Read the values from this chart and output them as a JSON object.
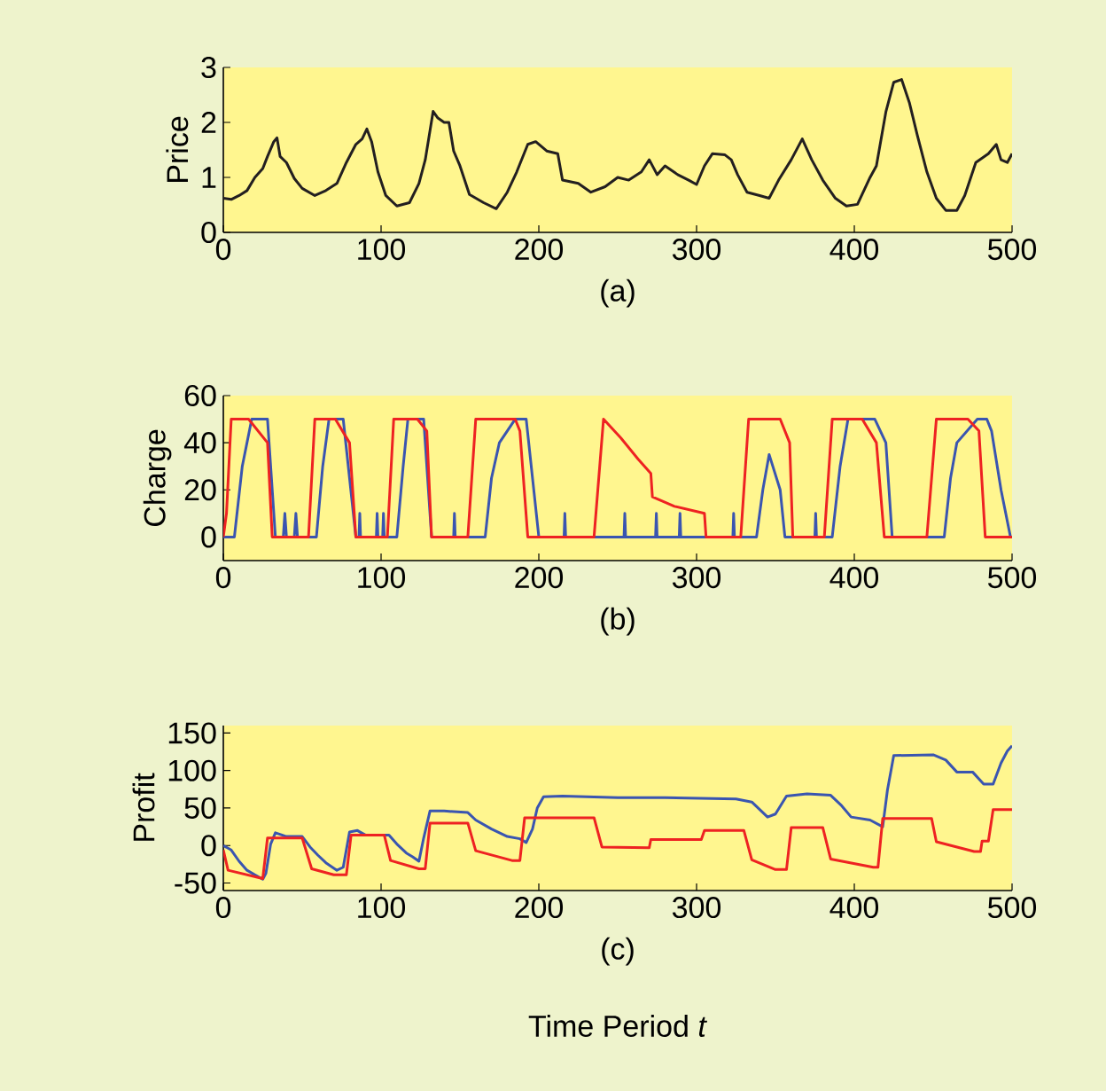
{
  "chart_data": [
    {
      "type": "line",
      "xlabel": "(a)",
      "ylabel": "Price",
      "xlim": [
        0,
        500
      ],
      "ylim": [
        0,
        3
      ],
      "xticks": [
        0,
        100,
        200,
        300,
        400,
        500
      ],
      "yticks": [
        0,
        1,
        2,
        3
      ],
      "series": [
        {
          "color": "#231f20",
          "x": [
            0,
            5,
            10,
            15,
            20,
            25,
            28,
            32,
            34,
            36,
            40,
            45,
            50,
            58,
            65,
            72,
            78,
            84,
            88,
            91,
            94,
            98,
            103,
            110,
            118,
            124,
            128,
            133,
            136,
            140,
            143,
            146,
            150,
            156,
            165,
            173,
            180,
            186,
            193,
            198,
            205,
            212,
            215,
            225,
            233,
            242,
            250,
            257,
            265,
            270,
            275,
            280,
            288,
            295,
            300,
            305,
            310,
            318,
            322,
            326,
            332,
            340,
            346,
            352,
            360,
            367,
            373,
            380,
            388,
            395,
            402,
            410,
            414,
            420,
            425,
            430,
            435,
            440,
            446,
            452,
            458,
            465,
            470,
            477,
            485,
            490,
            493,
            497,
            500
          ],
          "values": [
            0.62,
            0.6,
            0.67,
            0.76,
            1.0,
            1.16,
            1.38,
            1.65,
            1.72,
            1.38,
            1.27,
            0.98,
            0.8,
            0.67,
            0.76,
            0.89,
            1.27,
            1.6,
            1.7,
            1.88,
            1.65,
            1.1,
            0.67,
            0.48,
            0.54,
            0.89,
            1.32,
            2.2,
            2.08,
            2.0,
            2.0,
            1.48,
            1.21,
            0.69,
            0.54,
            0.43,
            0.73,
            1.1,
            1.6,
            1.65,
            1.48,
            1.43,
            0.95,
            0.89,
            0.73,
            0.83,
            1.0,
            0.95,
            1.1,
            1.32,
            1.05,
            1.21,
            1.05,
            0.95,
            0.87,
            1.21,
            1.43,
            1.41,
            1.32,
            1.05,
            0.73,
            0.67,
            0.62,
            0.95,
            1.32,
            1.7,
            1.32,
            0.95,
            0.62,
            0.48,
            0.51,
            1.0,
            1.21,
            2.19,
            2.73,
            2.78,
            2.35,
            1.76,
            1.1,
            0.62,
            0.4,
            0.4,
            0.67,
            1.27,
            1.43,
            1.6,
            1.32,
            1.27,
            1.43
          ]
        }
      ]
    },
    {
      "type": "line",
      "xlabel": "(b)",
      "ylabel": "Charge",
      "xlim": [
        0,
        500
      ],
      "ylim": [
        -10,
        60
      ],
      "xticks": [
        0,
        100,
        200,
        300,
        400,
        500
      ],
      "yticks": [
        0,
        20,
        40,
        60
      ],
      "series": [
        {
          "color": "#3a55b0",
          "x": [
            0,
            7,
            12,
            18,
            28,
            33,
            38,
            39,
            40,
            45,
            46,
            47,
            59,
            63,
            67,
            76,
            84,
            86,
            86.5,
            87,
            97,
            97.5,
            98,
            101,
            101.5,
            102,
            110,
            114,
            117,
            127,
            132,
            146,
            146.5,
            147,
            166,
            170,
            175,
            185,
            192,
            200,
            216,
            216.5,
            217,
            254,
            254.5,
            255,
            274,
            274.5,
            275,
            289,
            289.5,
            290,
            323,
            323.5,
            324,
            338,
            342,
            346,
            353,
            356,
            375,
            375.5,
            376,
            386,
            391,
            396,
            413,
            420,
            424,
            457,
            461,
            465,
            478,
            484,
            487,
            493,
            499,
            500
          ],
          "values": [
            0,
            0,
            30,
            50,
            50,
            0,
            0,
            10,
            0,
            0,
            10,
            0,
            0,
            30,
            50,
            50,
            0,
            0,
            10,
            0,
            0,
            10,
            0,
            0,
            10,
            0,
            0,
            30,
            50,
            50,
            0,
            0,
            10,
            0,
            0,
            25,
            40,
            50,
            50,
            0,
            0,
            10,
            0,
            0,
            10,
            0,
            0,
            10,
            0,
            0,
            10,
            0,
            0,
            10,
            0,
            0,
            20,
            35,
            20,
            0,
            0,
            10,
            0,
            0,
            30,
            50,
            50,
            40,
            0,
            0,
            25,
            40,
            50,
            50,
            45,
            20,
            0,
            0
          ]
        },
        {
          "color": "#ee2222",
          "x": [
            0,
            2,
            5,
            16,
            28,
            31,
            54,
            58,
            71,
            80,
            84,
            104,
            108,
            123,
            129,
            132,
            155,
            160,
            185,
            188,
            193,
            235,
            241,
            252,
            263,
            271,
            272,
            286,
            305,
            306,
            328,
            333,
            353,
            359,
            361,
            381,
            386,
            405,
            414,
            419,
            446,
            452,
            472,
            479,
            483,
            500
          ],
          "values": [
            0,
            10,
            50,
            50,
            40,
            0,
            0,
            50,
            50,
            40,
            0,
            0,
            50,
            50,
            45,
            0,
            0,
            50,
            50,
            45,
            0,
            0,
            50,
            42,
            33,
            27,
            17,
            13,
            10,
            0,
            0,
            50,
            50,
            40,
            0,
            0,
            50,
            50,
            40,
            0,
            0,
            50,
            50,
            45,
            0,
            0
          ]
        }
      ]
    },
    {
      "type": "line",
      "xlabel": "(c)",
      "ylabel": "Profit",
      "xlim": [
        0,
        500
      ],
      "ylim": [
        -60,
        160
      ],
      "xticks": [
        0,
        100,
        200,
        300,
        400,
        500
      ],
      "yticks": [
        -50,
        0,
        50,
        100,
        150
      ],
      "annotations": [
        "Time Period *t*"
      ],
      "series": [
        {
          "color": "#3a55b0",
          "x": [
            0,
            5,
            10,
            15,
            20,
            25,
            27,
            30,
            33,
            40,
            50,
            55,
            60,
            65,
            72,
            76,
            80,
            85,
            90,
            105,
            110,
            116,
            120,
            124,
            127,
            131,
            140,
            155,
            160,
            170,
            180,
            188,
            192,
            196,
            199,
            203,
            215,
            250,
            280,
            325,
            335,
            345,
            350,
            357,
            370,
            385,
            392,
            398,
            410,
            418,
            421,
            425,
            450,
            458,
            465,
            475,
            482,
            488,
            493,
            497,
            500
          ],
          "values": [
            0,
            -6,
            -21,
            -33,
            -39,
            -45,
            -37,
            2,
            17,
            12,
            12,
            -2,
            -13,
            -23,
            -33,
            -29,
            18,
            20,
            14,
            14,
            2,
            -10,
            -15,
            -21,
            10,
            46,
            46,
            44,
            34,
            22,
            12,
            9,
            4,
            22,
            50,
            65,
            66,
            64,
            64,
            62,
            58,
            38,
            42,
            66,
            69,
            67,
            53,
            38,
            34,
            25,
            74,
            120,
            121,
            114,
            98,
            98,
            82,
            82,
            110,
            126,
            133
          ]
        },
        {
          "color": "#ee2222",
          "x": [
            0,
            3,
            25,
            28,
            50,
            56,
            70,
            78,
            81,
            102,
            106,
            124,
            128,
            131,
            155,
            160,
            183,
            188,
            191,
            235,
            240,
            270,
            271,
            303,
            305,
            330,
            335,
            350,
            357,
            360,
            380,
            385,
            412,
            415,
            418,
            449,
            452,
            476,
            480,
            481,
            485,
            488,
            500
          ],
          "values": [
            -6,
            -33,
            -44,
            10,
            10,
            -31,
            -39,
            -39,
            14,
            14,
            -20,
            -31,
            -31,
            30,
            30,
            -7,
            -20,
            -20,
            37,
            37,
            -2,
            -3,
            8,
            8,
            20,
            20,
            -19,
            -32,
            -32,
            24,
            24,
            -18,
            -29,
            -29,
            36,
            36,
            5,
            -8,
            -8,
            6,
            6,
            48,
            48
          ]
        }
      ]
    }
  ]
}
